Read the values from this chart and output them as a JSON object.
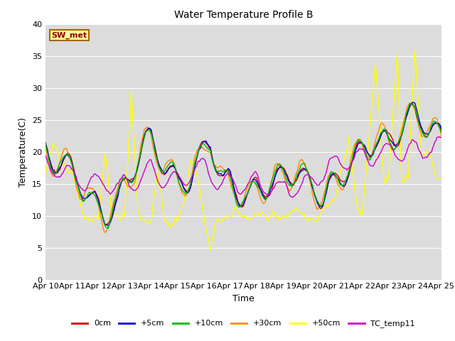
{
  "title": "Water Temperature Profile B",
  "xlabel": "Time",
  "ylabel": "Temperature(C)",
  "ylim": [
    0,
    40
  ],
  "annotation_label": "SW_met",
  "background_color": "#dcdcdc",
  "grid_color": "#ffffff",
  "series_colors": {
    "0cm": "#cc0000",
    "+5cm": "#0000cc",
    "+10cm": "#00bb00",
    "+30cm": "#ff8800",
    "+50cm": "#ffff00",
    "TC_temp11": "#cc00cc"
  },
  "tick_labels": [
    "Apr 10",
    "Apr 11",
    "Apr 12",
    "Apr 13",
    "Apr 14",
    "Apr 15",
    "Apr 16",
    "Apr 17",
    "Apr 18",
    "Apr 19",
    "Apr 20",
    "Apr 21",
    "Apr 22",
    "Apr 23",
    "Apr 24",
    "Apr 25"
  ],
  "yticks": [
    0,
    5,
    10,
    15,
    20,
    25,
    30,
    35,
    40
  ]
}
